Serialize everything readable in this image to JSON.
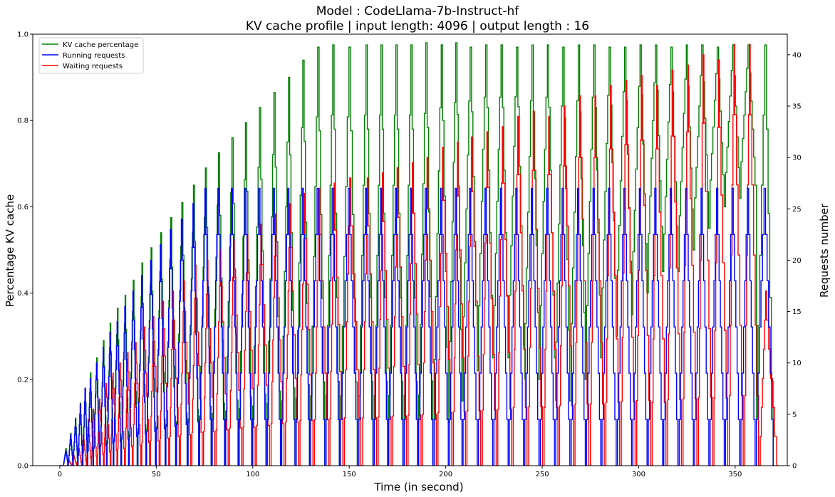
{
  "chart_data": {
    "type": "line",
    "title_lines": [
      "Model : CodeLlama-7b-Instruct-hf",
      "KV cache profile | input length: 4096 | output length : 16"
    ],
    "xlabel": "Time (in second)",
    "ylabel": "Percentage KV cache",
    "y2label": "Requests number",
    "xlim": [
      -14,
      377
    ],
    "ylim": [
      0,
      1.0
    ],
    "y2lim": [
      0,
      42
    ],
    "xticks": [
      0,
      50,
      100,
      150,
      200,
      250,
      300,
      350
    ],
    "yticks": [
      0.0,
      0.2,
      0.4,
      0.6,
      0.8,
      1.0
    ],
    "y2ticks": [
      0,
      5,
      10,
      15,
      20,
      25,
      30,
      35,
      40
    ],
    "legend_position": "upper-left",
    "legend": [
      "KV cache percentage",
      "Running requests",
      "Waiting requests"
    ],
    "colors": {
      "kv": "#008000",
      "running": "#0000ff",
      "waiting": "#ff0000"
    },
    "cycle_starts": [
      2,
      4.5,
      7,
      9.5,
      12,
      14.5,
      17.5,
      21,
      24.5,
      28,
      32,
      36,
      40.5,
      45,
      50,
      55,
      60.5,
      66.5,
      72.5,
      79,
      86,
      93,
      100,
      107.5,
      115,
      122.5,
      130,
      138,
      145.5,
      155,
      163,
      170.5,
      178.5,
      186,
      194,
      202,
      209,
      217,
      225,
      233,
      241,
      249,
      257,
      265,
      273,
      281,
      289,
      297,
      305,
      313,
      321,
      329,
      337,
      345,
      353,
      361
    ],
    "kv_peaks": [
      0.04,
      0.075,
      0.11,
      0.145,
      0.18,
      0.215,
      0.25,
      0.29,
      0.33,
      0.365,
      0.395,
      0.43,
      0.47,
      0.505,
      0.54,
      0.575,
      0.61,
      0.65,
      0.69,
      0.725,
      0.76,
      0.795,
      0.83,
      0.865,
      0.9,
      0.94,
      0.97,
      0.975,
      0.97,
      0.975,
      0.975,
      0.975,
      0.975,
      0.98,
      0.975,
      0.98,
      0.97,
      0.975,
      0.975,
      0.97,
      0.975,
      0.975,
      0.97,
      0.975,
      0.975,
      0.97,
      0.97,
      0.975,
      0.975,
      0.97,
      0.975,
      0.975,
      0.97,
      0.975,
      0.975,
      0.975
    ],
    "kv_troughs": [
      0.0,
      0.0,
      0.0,
      0.0,
      0.0,
      0.0,
      0.0,
      0.0,
      0.0,
      0.0,
      0.0,
      0.0,
      0.0,
      0.0,
      0.0,
      0.0,
      0.0,
      0.0,
      0.0,
      0.0,
      0.0,
      0.0,
      0.0,
      0.0,
      0.0,
      0.0,
      0.0,
      0.0,
      0.0,
      0.0,
      0.0,
      0.0,
      0.0,
      0.0,
      0.1,
      0.15,
      0.22,
      0.25,
      0.25,
      0.28,
      0.2,
      0.25,
      0.15,
      0.2,
      0.25,
      0.3,
      0.35,
      0.4,
      0.45,
      0.45,
      0.5,
      0.55,
      0.6,
      0.62,
      0.65,
      0.0
    ],
    "running_peaks": [
      1.5,
      3,
      4.5,
      6,
      7.5,
      8.5,
      10,
      11.5,
      13,
      14,
      15.5,
      17,
      18.5,
      20,
      21.5,
      23,
      24,
      25.5,
      27,
      27,
      27,
      27,
      27,
      27,
      27,
      27,
      27,
      27,
      27,
      27,
      27,
      27,
      27,
      27,
      27,
      27,
      27,
      27,
      27,
      27,
      27,
      27,
      27,
      27,
      27,
      27,
      27,
      27,
      27,
      27,
      27,
      27,
      27,
      27,
      27,
      27
    ],
    "waiting_peaks": [
      0.5,
      1,
      2,
      3,
      4.5,
      5.5,
      6.5,
      8,
      9,
      10,
      11,
      12,
      13.5,
      14.5,
      16,
      17,
      18,
      19.5,
      20,
      21,
      22,
      22.5,
      23.5,
      24.5,
      25.5,
      26.5,
      27,
      27.5,
      28,
      28,
      28.5,
      29,
      29.5,
      30,
      31,
      31.5,
      32,
      32.5,
      33,
      34,
      34.5,
      34,
      35,
      36,
      36,
      37,
      37.5,
      38,
      37,
      38.5,
      39,
      40,
      39.5,
      41,
      41,
      17
    ]
  }
}
